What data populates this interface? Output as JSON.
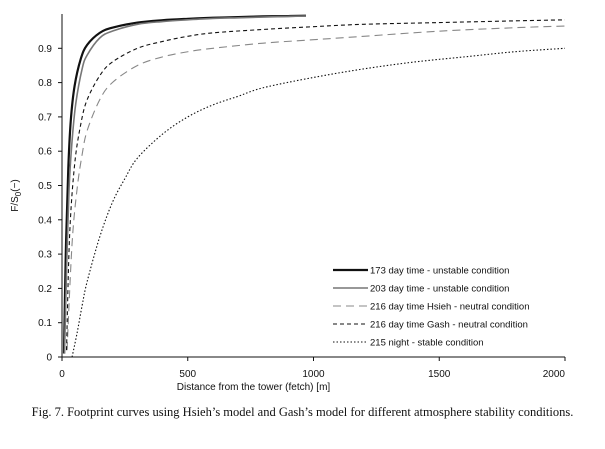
{
  "caption": "Fig. 7. Footprint curves using Hsieh’s model and Gash’s model for different atmosphere stability conditions.",
  "chart_data": {
    "type": "line",
    "title": "",
    "xlabel": "Distance from the tower (fetch) [m]",
    "ylabel_main": "F/S",
    "ylabel_sub": "0",
    "ylabel_tail": "(−)",
    "xlim": [
      0,
      2000
    ],
    "ylim": [
      0,
      1.0
    ],
    "xticks": [
      0,
      500,
      1000,
      1500,
      2000
    ],
    "yticks": [
      0,
      0.1,
      0.2,
      0.3,
      0.4,
      0.5,
      0.6,
      0.7,
      0.8,
      0.9
    ],
    "ytick_labels": [
      "0",
      "0.1",
      "0.2",
      "0.3",
      "0.4",
      "0.5",
      "0.6",
      "0.7",
      "0.8",
      "0.9"
    ],
    "grid": false,
    "legend_position": "bottom-right",
    "series": [
      {
        "name": "173 day time - unstable condition",
        "color": "#111111",
        "width": 2.2,
        "dash": "",
        "x": [
          8,
          15,
          25,
          35,
          50,
          75,
          100,
          150,
          200,
          300,
          400,
          500,
          600,
          700,
          800,
          900,
          970
        ],
        "y": [
          0.01,
          0.3,
          0.55,
          0.69,
          0.79,
          0.87,
          0.91,
          0.945,
          0.96,
          0.975,
          0.982,
          0.986,
          0.989,
          0.991,
          0.993,
          0.994,
          0.995
        ]
      },
      {
        "name": "203 day time - unstable condition",
        "color": "#777777",
        "width": 1.6,
        "dash": "",
        "x": [
          10,
          18,
          28,
          40,
          55,
          80,
          100,
          150,
          200,
          300,
          400,
          500,
          600,
          700,
          800,
          900,
          970
        ],
        "y": [
          0.01,
          0.25,
          0.49,
          0.63,
          0.74,
          0.84,
          0.88,
          0.93,
          0.95,
          0.97,
          0.978,
          0.983,
          0.987,
          0.989,
          0.991,
          0.993,
          0.994
        ]
      },
      {
        "name": "216 day time Hsieh - neutral condition",
        "color": "#888888",
        "width": 1.1,
        "dash": "8,5",
        "x": [
          20,
          40,
          60,
          80,
          100,
          150,
          200,
          300,
          400,
          500,
          600,
          800,
          1000,
          1200,
          1500,
          1800,
          2000
        ],
        "y": [
          0.02,
          0.33,
          0.49,
          0.59,
          0.66,
          0.75,
          0.8,
          0.85,
          0.875,
          0.89,
          0.9,
          0.915,
          0.925,
          0.935,
          0.95,
          0.96,
          0.965
        ]
      },
      {
        "name": "216 day time Gash - neutral condition",
        "color": "#111111",
        "width": 1.1,
        "dash": "4,3",
        "x": [
          18,
          30,
          50,
          75,
          100,
          150,
          200,
          300,
          400,
          500,
          600,
          800,
          1000,
          1200,
          1500,
          1800,
          2000
        ],
        "y": [
          0.02,
          0.35,
          0.56,
          0.68,
          0.75,
          0.82,
          0.86,
          0.9,
          0.92,
          0.935,
          0.945,
          0.955,
          0.963,
          0.97,
          0.975,
          0.98,
          0.983
        ]
      },
      {
        "name": "215 night - stable condition",
        "color": "#111111",
        "width": 1.1,
        "dash": "1.5,2",
        "x": [
          40,
          60,
          80,
          100,
          150,
          200,
          250,
          300,
          400,
          500,
          600,
          700,
          800,
          1000,
          1200,
          1400,
          1600,
          1800,
          2000
        ],
        "y": [
          0.0,
          0.07,
          0.15,
          0.22,
          0.35,
          0.45,
          0.52,
          0.58,
          0.65,
          0.7,
          0.735,
          0.76,
          0.785,
          0.815,
          0.84,
          0.86,
          0.875,
          0.89,
          0.9
        ]
      }
    ]
  }
}
